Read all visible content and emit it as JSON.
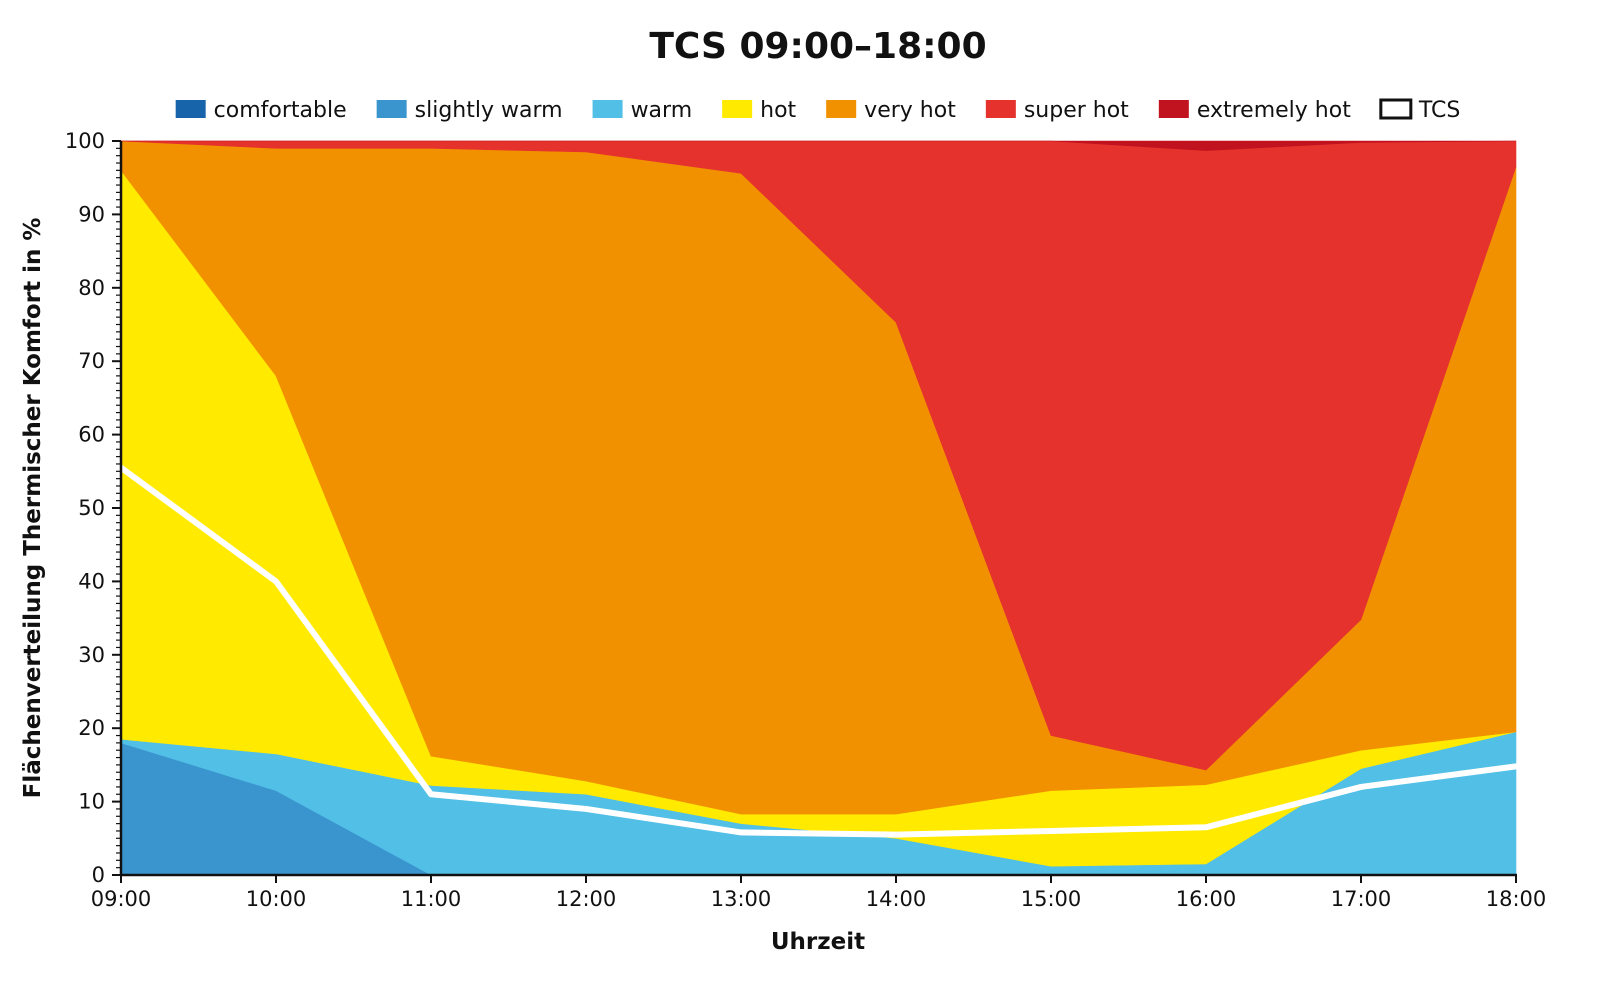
{
  "chart_data": {
    "type": "area",
    "stacked": true,
    "title": "TCS 09:00–18:00",
    "xlabel": "Uhrzeit",
    "ylabel": "Flächenverteilung Thermischer Komfort in %",
    "ylim": [
      0,
      100
    ],
    "yticks": [
      0,
      10,
      20,
      30,
      40,
      50,
      60,
      70,
      80,
      90,
      100
    ],
    "categories": [
      "09:00",
      "10:00",
      "11:00",
      "12:00",
      "13:00",
      "14:00",
      "15:00",
      "16:00",
      "17:00",
      "18:00"
    ],
    "legend_position": "top",
    "grid": false,
    "series": [
      {
        "name": "comfortable",
        "color": "#1764ab",
        "values": [
          0,
          0,
          0,
          0,
          0,
          0,
          0,
          0,
          0,
          0
        ]
      },
      {
        "name": "slightly warm",
        "color": "#3a95cf",
        "values": [
          18,
          11.5,
          0,
          0,
          0,
          0,
          0,
          0,
          0,
          0
        ]
      },
      {
        "name": "warm",
        "color": "#52bfe6",
        "values": [
          0.5,
          5,
          12.2,
          11,
          7,
          5,
          1.2,
          1.5,
          14.5,
          19.5
        ]
      },
      {
        "name": "hot",
        "color": "#ffea00",
        "values": [
          77.5,
          51.5,
          4,
          1.8,
          1.3,
          3.3,
          10.3,
          10.8,
          2.5,
          0
        ]
      },
      {
        "name": "very hot",
        "color": "#f29100",
        "values": [
          4,
          31,
          82.8,
          85.7,
          87.3,
          67,
          7.5,
          2,
          17.8,
          77
        ]
      },
      {
        "name": "super hot",
        "color": "#e5322d",
        "values": [
          0,
          1,
          1,
          1.5,
          4.4,
          24.7,
          81,
          84.4,
          65,
          3.5
        ]
      },
      {
        "name": "extremely hot",
        "color": "#c1121f",
        "values": [
          0,
          0,
          0,
          0,
          0,
          0,
          0,
          1.3,
          0.2,
          0
        ]
      }
    ],
    "line_series": {
      "name": "TCS",
      "color": "#ffffff",
      "values": [
        55.5,
        40,
        11,
        9,
        5.8,
        5.5,
        6,
        6.5,
        12,
        14.8
      ]
    }
  }
}
